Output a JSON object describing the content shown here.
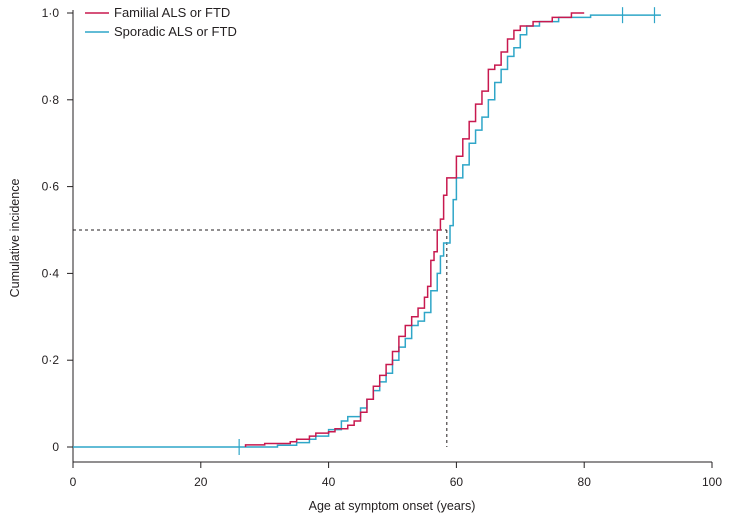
{
  "chart_data": {
    "type": "line",
    "step": true,
    "title": "",
    "xlabel": "Age at symptom onset (years)",
    "ylabel": "Cumulative incidence",
    "xlim": [
      0,
      100
    ],
    "ylim": [
      0,
      1
    ],
    "x_ticks": [
      0,
      20,
      40,
      60,
      80,
      100
    ],
    "x_tick_labels": [
      "0",
      "20",
      "40",
      "60",
      "80",
      "100"
    ],
    "y_ticks": [
      0,
      0.2,
      0.4,
      0.6,
      0.8,
      1.0
    ],
    "y_tick_labels": [
      "0",
      "0·2",
      "0·4",
      "0·6",
      "0·8",
      "1·0"
    ],
    "grid": false,
    "legend": {
      "position": "top-left"
    },
    "reference_lines": [
      {
        "series": "Familial ALS or FTD",
        "y": 0.5,
        "x": 58.5
      }
    ],
    "series": [
      {
        "name": "Familial ALS or FTD",
        "color": "#c8194f",
        "points": [
          [
            27,
            0
          ],
          [
            27,
            0.005
          ],
          [
            30,
            0.005
          ],
          [
            30,
            0.008
          ],
          [
            34,
            0.008
          ],
          [
            34,
            0.012
          ],
          [
            35,
            0.012
          ],
          [
            35,
            0.018
          ],
          [
            37,
            0.018
          ],
          [
            37,
            0.025
          ],
          [
            38,
            0.025
          ],
          [
            38,
            0.032
          ],
          [
            40,
            0.032
          ],
          [
            40,
            0.035
          ],
          [
            41,
            0.035
          ],
          [
            41,
            0.042
          ],
          [
            43,
            0.042
          ],
          [
            43,
            0.05
          ],
          [
            44,
            0.05
          ],
          [
            44,
            0.06
          ],
          [
            45,
            0.06
          ],
          [
            45,
            0.08
          ],
          [
            46,
            0.08
          ],
          [
            46,
            0.11
          ],
          [
            47,
            0.11
          ],
          [
            47,
            0.14
          ],
          [
            48,
            0.14
          ],
          [
            48,
            0.165
          ],
          [
            49,
            0.165
          ],
          [
            49,
            0.19
          ],
          [
            50,
            0.19
          ],
          [
            50,
            0.22
          ],
          [
            51,
            0.22
          ],
          [
            51,
            0.255
          ],
          [
            52,
            0.255
          ],
          [
            52,
            0.28
          ],
          [
            53,
            0.28
          ],
          [
            53,
            0.3
          ],
          [
            54,
            0.3
          ],
          [
            54,
            0.32
          ],
          [
            55,
            0.32
          ],
          [
            55,
            0.345
          ],
          [
            55.5,
            0.345
          ],
          [
            55.5,
            0.37
          ],
          [
            56,
            0.37
          ],
          [
            56,
            0.43
          ],
          [
            56.5,
            0.43
          ],
          [
            56.5,
            0.45
          ],
          [
            57,
            0.45
          ],
          [
            57,
            0.5
          ],
          [
            57.5,
            0.5
          ],
          [
            57.5,
            0.525
          ],
          [
            58,
            0.525
          ],
          [
            58,
            0.58
          ],
          [
            58.5,
            0.58
          ],
          [
            58.5,
            0.62
          ],
          [
            60,
            0.62
          ],
          [
            60,
            0.67
          ],
          [
            61,
            0.67
          ],
          [
            61,
            0.71
          ],
          [
            62,
            0.71
          ],
          [
            62,
            0.75
          ],
          [
            63,
            0.75
          ],
          [
            63,
            0.79
          ],
          [
            64,
            0.79
          ],
          [
            64,
            0.82
          ],
          [
            65,
            0.82
          ],
          [
            65,
            0.87
          ],
          [
            66,
            0.87
          ],
          [
            66,
            0.88
          ],
          [
            67,
            0.88
          ],
          [
            67,
            0.91
          ],
          [
            68,
            0.91
          ],
          [
            68,
            0.94
          ],
          [
            69,
            0.94
          ],
          [
            69,
            0.96
          ],
          [
            70,
            0.96
          ],
          [
            70,
            0.97
          ],
          [
            72,
            0.97
          ],
          [
            72,
            0.98
          ],
          [
            75,
            0.98
          ],
          [
            75,
            0.99
          ],
          [
            78,
            0.99
          ],
          [
            78,
            1.0
          ],
          [
            80,
            1.0
          ]
        ],
        "censor_marks": []
      },
      {
        "name": "Sporadic ALS or FTD",
        "color": "#2fa6c8",
        "points": [
          [
            0,
            0
          ],
          [
            32,
            0
          ],
          [
            32,
            0.004
          ],
          [
            35,
            0.004
          ],
          [
            35,
            0.01
          ],
          [
            37,
            0.01
          ],
          [
            37,
            0.018
          ],
          [
            38,
            0.018
          ],
          [
            38,
            0.025
          ],
          [
            40,
            0.025
          ],
          [
            40,
            0.04
          ],
          [
            42,
            0.04
          ],
          [
            42,
            0.06
          ],
          [
            43,
            0.06
          ],
          [
            43,
            0.07
          ],
          [
            45,
            0.07
          ],
          [
            45,
            0.09
          ],
          [
            46,
            0.09
          ],
          [
            46,
            0.11
          ],
          [
            47,
            0.11
          ],
          [
            47,
            0.13
          ],
          [
            48,
            0.13
          ],
          [
            48,
            0.15
          ],
          [
            49,
            0.15
          ],
          [
            49,
            0.17
          ],
          [
            50,
            0.17
          ],
          [
            50,
            0.2
          ],
          [
            51,
            0.2
          ],
          [
            51,
            0.23
          ],
          [
            52,
            0.23
          ],
          [
            52,
            0.25
          ],
          [
            53,
            0.25
          ],
          [
            53,
            0.28
          ],
          [
            54,
            0.28
          ],
          [
            54,
            0.29
          ],
          [
            55,
            0.29
          ],
          [
            55,
            0.31
          ],
          [
            56,
            0.31
          ],
          [
            56,
            0.36
          ],
          [
            57,
            0.36
          ],
          [
            57,
            0.4
          ],
          [
            57.5,
            0.4
          ],
          [
            57.5,
            0.44
          ],
          [
            58,
            0.44
          ],
          [
            58,
            0.47
          ],
          [
            59,
            0.47
          ],
          [
            59,
            0.51
          ],
          [
            59.5,
            0.51
          ],
          [
            59.5,
            0.57
          ],
          [
            60,
            0.57
          ],
          [
            60,
            0.62
          ],
          [
            61,
            0.62
          ],
          [
            61,
            0.65
          ],
          [
            62,
            0.65
          ],
          [
            62,
            0.7
          ],
          [
            63,
            0.7
          ],
          [
            63,
            0.73
          ],
          [
            64,
            0.73
          ],
          [
            64,
            0.76
          ],
          [
            65,
            0.76
          ],
          [
            65,
            0.8
          ],
          [
            66,
            0.8
          ],
          [
            66,
            0.84
          ],
          [
            67,
            0.84
          ],
          [
            67,
            0.87
          ],
          [
            68,
            0.87
          ],
          [
            68,
            0.9
          ],
          [
            69,
            0.9
          ],
          [
            69,
            0.92
          ],
          [
            70,
            0.92
          ],
          [
            70,
            0.95
          ],
          [
            71,
            0.95
          ],
          [
            71,
            0.97
          ],
          [
            73,
            0.97
          ],
          [
            73,
            0.98
          ],
          [
            76,
            0.98
          ],
          [
            76,
            0.99
          ],
          [
            81,
            0.99
          ],
          [
            81,
            0.995
          ],
          [
            92,
            0.995
          ]
        ],
        "censor_marks": [
          26,
          86,
          91
        ]
      }
    ]
  }
}
